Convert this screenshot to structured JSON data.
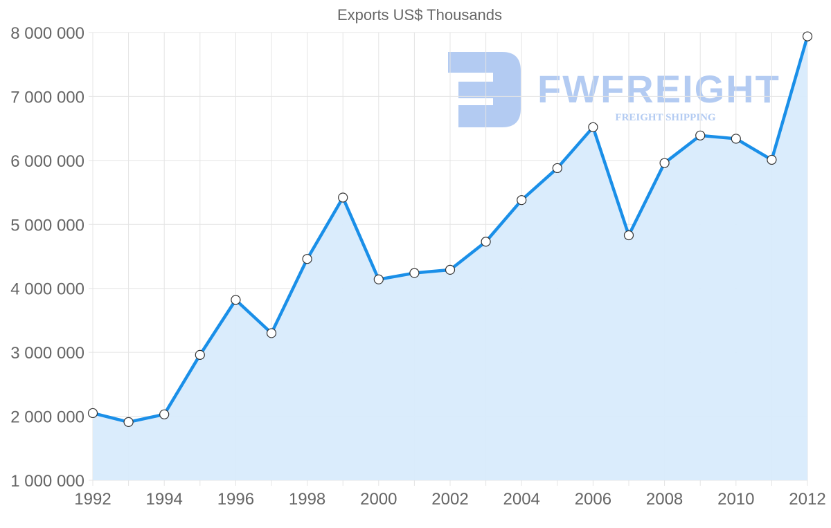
{
  "chart_data": {
    "type": "area",
    "title": "Exports US$ Thousands",
    "xlabel": "",
    "ylabel": "",
    "x": [
      1992,
      1993,
      1994,
      1995,
      1996,
      1997,
      1998,
      1999,
      2000,
      2001,
      2002,
      2003,
      2004,
      2005,
      2006,
      2007,
      2008,
      2009,
      2010,
      2011,
      2012
    ],
    "series": [
      {
        "name": "Exports US$ Thousands",
        "values": [
          2050000,
          1910000,
          2030000,
          2960000,
          3820000,
          3300000,
          4460000,
          5420000,
          4140000,
          4240000,
          4290000,
          4730000,
          5380000,
          5880000,
          6520000,
          4830000,
          5960000,
          6390000,
          6340000,
          6010000,
          7940000
        ],
        "color": "#1a8fe8",
        "fill": "#d8ebfc"
      }
    ],
    "xticks": [
      "1992",
      "1994",
      "1996",
      "1998",
      "2000",
      "2002",
      "2004",
      "2006",
      "2008",
      "2010",
      "2012"
    ],
    "yticks": [
      "1 000 000",
      "2 000 000",
      "3 000 000",
      "4 000 000",
      "5 000 000",
      "6 000 000",
      "7 000 000",
      "8 000 000"
    ],
    "ylim": [
      1000000,
      8000000
    ],
    "xlim": [
      1992,
      2012
    ],
    "grid": true,
    "legend": "none"
  },
  "watermark": {
    "brand": "FWFREIGHT",
    "tagline": "FREIGHT SHIPPING",
    "color": "#b3cbf2"
  }
}
